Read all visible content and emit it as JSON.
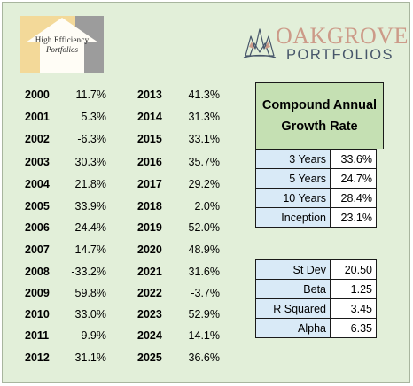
{
  "logos": {
    "high_efficiency": {
      "line1": "High Efficiency",
      "line2": "Portfolios"
    },
    "oakgrove": {
      "name": "OAKGROVE",
      "sub": "PORTFOLIOS"
    }
  },
  "returns_left": [
    {
      "year": "2000",
      "value": "11.7%"
    },
    {
      "year": "2001",
      "value": "5.3%"
    },
    {
      "year": "2002",
      "value": "-6.3%"
    },
    {
      "year": "2003",
      "value": "30.3%"
    },
    {
      "year": "2004",
      "value": "21.8%"
    },
    {
      "year": "2005",
      "value": "33.9%"
    },
    {
      "year": "2006",
      "value": "24.4%"
    },
    {
      "year": "2007",
      "value": "14.7%"
    },
    {
      "year": "2008",
      "value": "-33.2%"
    },
    {
      "year": "2009",
      "value": "59.8%"
    },
    {
      "year": "2010",
      "value": "33.0%"
    },
    {
      "year": "2011",
      "value": "9.9%"
    },
    {
      "year": "2012",
      "value": "31.1%"
    }
  ],
  "returns_right": [
    {
      "year": "2013",
      "value": "41.3%"
    },
    {
      "year": "2014",
      "value": "31.3%"
    },
    {
      "year": "2015",
      "value": "33.1%"
    },
    {
      "year": "2016",
      "value": "35.7%"
    },
    {
      "year": "2017",
      "value": "29.2%"
    },
    {
      "year": "2018",
      "value": "2.0%"
    },
    {
      "year": "2019",
      "value": "52.0%"
    },
    {
      "year": "2020",
      "value": "48.9%"
    },
    {
      "year": "2021",
      "value": "31.6%"
    },
    {
      "year": "2022",
      "value": "-3.7%"
    },
    {
      "year": "2023",
      "value": "52.9%"
    },
    {
      "year": "2024",
      "value": "14.1%"
    },
    {
      "year": "2025",
      "value": "36.6%"
    }
  ],
  "cagr": {
    "title_line1": "Compound Annual",
    "title_line2": "Growth Rate",
    "rows": [
      {
        "label": "3 Years",
        "value": "33.6%"
      },
      {
        "label": "5 Years",
        "value": "24.7%"
      },
      {
        "label": "10 Years",
        "value": "28.4%"
      },
      {
        "label": "Inception",
        "value": "23.1%"
      }
    ]
  },
  "stats": {
    "rows": [
      {
        "label": "St Dev",
        "value": "20.50"
      },
      {
        "label": "Beta",
        "value": "1.25"
      },
      {
        "label": "R Squared",
        "value": "3.45"
      },
      {
        "label": "Alpha",
        "value": "6.35"
      }
    ]
  },
  "colors": {
    "panel_background": "#e2efd9",
    "header_green": "#c5e0b3",
    "label_blue": "#d9eaf7",
    "oakgrove_name": "#cc9a88",
    "oakgrove_sub": "#47566a"
  }
}
